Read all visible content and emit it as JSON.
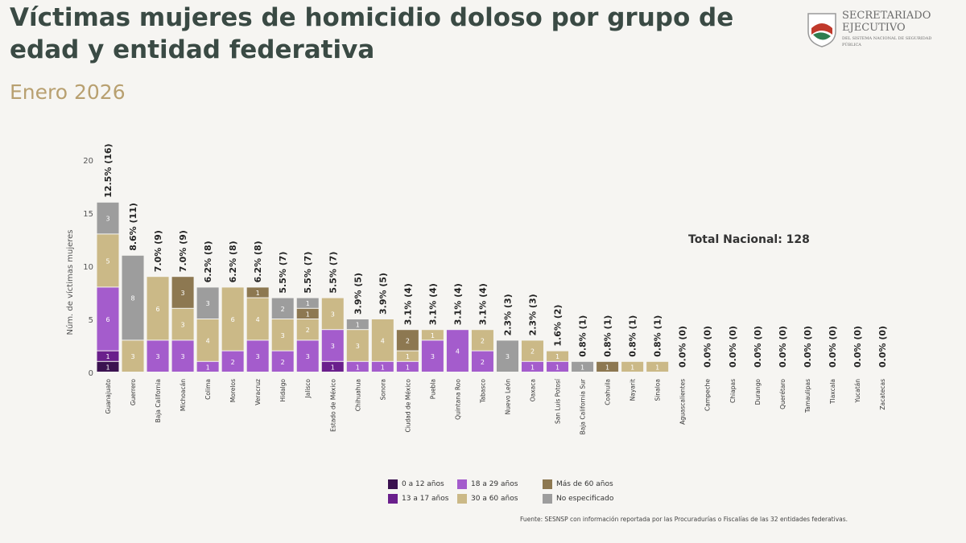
{
  "title": "Víctimas mujeres de homicidio doloso por grupo de edad y entidad federativa",
  "subtitle": "Enero 2026",
  "logo": {
    "line1": "SECRETARIADO",
    "line2": "EJECUTIVO",
    "line3": "DEL SISTEMA NACIONAL DE SEGURIDAD PÚBLICA"
  },
  "total_label": "Total Nacional: 128",
  "source": "Fuente: SESNSP con información reportada por las Procuradurías o Fiscalías de las 32 entidades federativas.",
  "chart_data": {
    "type": "bar",
    "stacked": true,
    "ylabel": "Núm. de víctimas mujeres",
    "ylim": [
      0,
      20
    ],
    "yticks": [
      0,
      5,
      10,
      15,
      20
    ],
    "categories": [
      "Guanajuato",
      "Guerrero",
      "Baja California",
      "Michoacán",
      "Colima",
      "Morelos",
      "Veracruz",
      "Hidalgo",
      "Jalisco",
      "Estado de México",
      "Chihuahua",
      "Sonora",
      "Ciudad de México",
      "Puebla",
      "Quintana Roo",
      "Tabasco",
      "Nuevo León",
      "Oaxaca",
      "San Luis Potosí",
      "Baja California Sur",
      "Coahuila",
      "Nayarit",
      "Sinaloa",
      "Aguascalientes",
      "Campeche",
      "Chiapas",
      "Durango",
      "Querétaro",
      "Tamaulipas",
      "Tlaxcala",
      "Yucatán",
      "Zacatecas"
    ],
    "top_labels": [
      "12.5% (16)",
      "8.6% (11)",
      "7.0% (9)",
      "7.0% (9)",
      "6.2% (8)",
      "6.2% (8)",
      "6.2% (8)",
      "5.5% (7)",
      "5.5% (7)",
      "5.5% (7)",
      "3.9% (5)",
      "3.9% (5)",
      "3.1% (4)",
      "3.1% (4)",
      "3.1% (4)",
      "3.1% (4)",
      "2.3% (3)",
      "2.3% (3)",
      "1.6% (2)",
      "0.8% (1)",
      "0.8% (1)",
      "0.8% (1)",
      "0.8% (1)",
      "0.0% (0)",
      "0.0% (0)",
      "0.0% (0)",
      "0.0% (0)",
      "0.0% (0)",
      "0.0% (0)",
      "0.0% (0)",
      "0.0% (0)",
      "0.0% (0)"
    ],
    "series": [
      {
        "name": "0 a 12 años",
        "color": "#3b1250",
        "values": [
          1,
          0,
          0,
          0,
          0,
          0,
          0,
          0,
          0,
          0,
          0,
          0,
          0,
          0,
          0,
          0,
          0,
          0,
          0,
          0,
          0,
          0,
          0,
          0,
          0,
          0,
          0,
          0,
          0,
          0,
          0,
          0
        ]
      },
      {
        "name": "13 a 17 años",
        "color": "#6a1f8c",
        "values": [
          1,
          0,
          0,
          0,
          0,
          0,
          0,
          0,
          0,
          1,
          0,
          0,
          0,
          0,
          0,
          0,
          0,
          0,
          0,
          0,
          0,
          0,
          0,
          0,
          0,
          0,
          0,
          0,
          0,
          0,
          0,
          0
        ]
      },
      {
        "name": "18 a 29 años",
        "color": "#a45ccc",
        "values": [
          6,
          0,
          3,
          3,
          1,
          2,
          3,
          2,
          3,
          3,
          1,
          1,
          1,
          3,
          4,
          2,
          0,
          1,
          1,
          0,
          0,
          0,
          0,
          0,
          0,
          0,
          0,
          0,
          0,
          0,
          0,
          0
        ]
      },
      {
        "name": "30 a 60 años",
        "color": "#cbb987",
        "values": [
          5,
          3,
          6,
          3,
          4,
          6,
          4,
          3,
          2,
          3,
          3,
          4,
          1,
          1,
          0,
          2,
          0,
          2,
          1,
          0,
          0,
          1,
          1,
          0,
          0,
          0,
          0,
          0,
          0,
          0,
          0,
          0
        ]
      },
      {
        "name": "Más de 60 años",
        "color": "#8d7851",
        "values": [
          0,
          0,
          0,
          3,
          0,
          0,
          1,
          0,
          1,
          0,
          0,
          0,
          2,
          0,
          0,
          0,
          0,
          0,
          0,
          0,
          1,
          0,
          0,
          0,
          0,
          0,
          0,
          0,
          0,
          0,
          0,
          0
        ]
      },
      {
        "name": "No especificado",
        "color": "#9d9d9d",
        "values": [
          3,
          8,
          0,
          0,
          3,
          0,
          0,
          2,
          1,
          0,
          1,
          0,
          0,
          0,
          0,
          0,
          3,
          0,
          0,
          1,
          0,
          0,
          0,
          0,
          0,
          0,
          0,
          0,
          0,
          0,
          0,
          0
        ]
      }
    ],
    "legend_order": [
      0,
      2,
      4,
      1,
      3,
      5
    ]
  }
}
